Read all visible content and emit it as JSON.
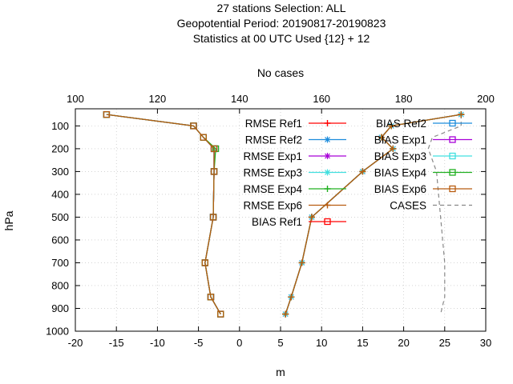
{
  "chart_data": {
    "type": "line",
    "title_lines": [
      "27 stations Selection: ALL",
      "Geopotential  Period: 20190817-20190823",
      "Statistics at 00 UTC  Used {12} + 12"
    ],
    "xlabel": "m",
    "ylabel": "hPa",
    "x2label": "No cases",
    "xlim": [
      -20,
      30
    ],
    "x2lim": [
      100,
      200
    ],
    "ylim": [
      1000,
      25
    ],
    "y_inverted": true,
    "xticks": [
      -20,
      -15,
      -10,
      -5,
      0,
      5,
      10,
      15,
      20,
      25,
      30
    ],
    "x2ticks": [
      100,
      120,
      140,
      160,
      180,
      200
    ],
    "yticks": [
      100,
      200,
      300,
      400,
      500,
      600,
      700,
      800,
      900,
      1000
    ],
    "grid": true,
    "legend_position": "top-right",
    "levels": [
      50,
      100,
      150,
      200,
      300,
      500,
      700,
      850,
      925
    ],
    "series": [
      {
        "name": "RMSE Ref1",
        "color": "#ff0000",
        "marker": "plus",
        "x": [
          27,
          18.5,
          17.3,
          18.7,
          15,
          8.8,
          7.6,
          6.3,
          5.6
        ]
      },
      {
        "name": "RMSE Ref2",
        "color": "#1c8cdc",
        "marker": "star",
        "x": [
          27,
          18.5,
          17.3,
          18.7,
          15,
          8.8,
          7.6,
          6.3,
          5.6
        ]
      },
      {
        "name": "RMSE Exp1",
        "color": "#a800d8",
        "marker": "star",
        "x": [
          27,
          18.5,
          17.3,
          18.7,
          15,
          8.8,
          7.6,
          6.3,
          5.6
        ]
      },
      {
        "name": "RMSE Exp3",
        "color": "#40e0e0",
        "marker": "star",
        "x": [
          27,
          18.5,
          17.3,
          18.7,
          15,
          8.8,
          7.6,
          6.3,
          5.6
        ]
      },
      {
        "name": "RMSE Exp4",
        "color": "#20b020",
        "marker": "plus",
        "x": [
          27,
          18.5,
          17.3,
          18.7,
          15,
          8.8,
          7.6,
          6.3,
          5.6
        ]
      },
      {
        "name": "RMSE Exp6",
        "color": "#b85c10",
        "marker": "plus",
        "x": [
          27,
          18.5,
          17.3,
          18.7,
          15,
          8.8,
          7.6,
          6.3,
          5.6
        ]
      },
      {
        "name": "BIAS Ref1",
        "color": "#ff0000",
        "marker": "square",
        "x": [
          -16.2,
          -5.6,
          -4.4,
          -3.1,
          -3.1,
          -3.2,
          -4.2,
          -3.5,
          -2.3
        ]
      },
      {
        "name": "BIAS Ref2",
        "color": "#1c8cdc",
        "marker": "square",
        "x": [
          -16.2,
          -5.6,
          -4.4,
          -3.1,
          -3.1,
          -3.2,
          -4.2,
          -3.5,
          -2.3
        ]
      },
      {
        "name": "BIAS Exp1",
        "color": "#a800d8",
        "marker": "square",
        "x": [
          -16.2,
          -5.6,
          -4.4,
          -3.1,
          -3.1,
          -3.2,
          -4.2,
          -3.5,
          -2.3
        ]
      },
      {
        "name": "BIAS Exp3",
        "color": "#40e0e0",
        "marker": "square",
        "x": [
          -16.2,
          -5.6,
          -4.4,
          -3.1,
          -3.1,
          -3.2,
          -4.2,
          -3.5,
          -2.3
        ]
      },
      {
        "name": "BIAS Exp4",
        "color": "#20b020",
        "marker": "square",
        "x": [
          -16.2,
          -5.6,
          -4.4,
          -2.9,
          -3.1,
          -3.2,
          -4.2,
          -3.5,
          -2.3
        ]
      },
      {
        "name": "BIAS Exp6",
        "color": "#b85c10",
        "marker": "square",
        "x": [
          -16.2,
          -5.6,
          -4.4,
          -3.1,
          -3.1,
          -3.2,
          -4.2,
          -3.5,
          -2.3
        ]
      }
    ],
    "cases": {
      "name": "CASES",
      "color": "#888888",
      "dash": "dashed",
      "x2": [
        194,
        194,
        187,
        186,
        188,
        189,
        190,
        190,
        189
      ],
      "levels": [
        50,
        100,
        150,
        200,
        300,
        500,
        700,
        850,
        925
      ]
    }
  }
}
